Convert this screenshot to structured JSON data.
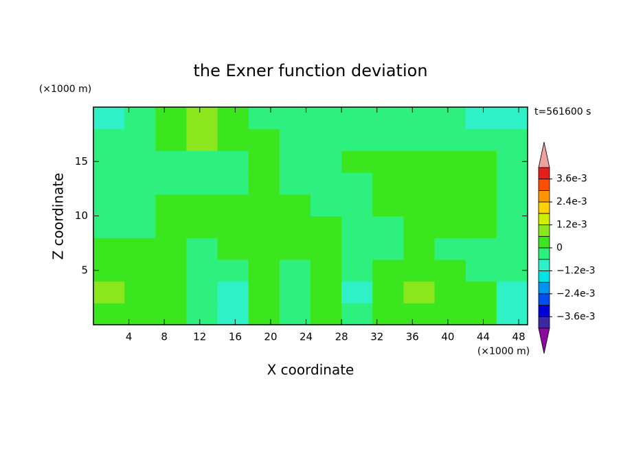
{
  "chart_data": {
    "type": "contour",
    "title": "the Exner function deviation",
    "x_label": "X coordinate",
    "y_label": "Z coordinate",
    "x_unit_label": "(×1000 m)",
    "y_unit_label": "(×1000 m)",
    "annotation": "t=561600 s",
    "xlim": [
      0,
      49
    ],
    "ylim": [
      0,
      20
    ],
    "xticks": [
      4,
      8,
      12,
      16,
      20,
      24,
      28,
      32,
      36,
      40,
      44,
      48
    ],
    "yticks": [
      5,
      10,
      15
    ],
    "levels": [
      -0.0042,
      -0.0036,
      -0.003,
      -0.0024,
      -0.0018,
      -0.0012,
      -0.0006,
      0,
      0.0006,
      0.0012,
      0.0018,
      0.0024,
      0.003,
      0.0036,
      0.0042
    ],
    "colors": [
      "#3c28a0",
      "#0000dc",
      "#0050f0",
      "#0096f0",
      "#00e6e6",
      "#30f0c8",
      "#2ef07f",
      "#3ce61e",
      "#8ce61e",
      "#d2ee00",
      "#ffd200",
      "#ff9600",
      "#ff5000",
      "#e61e1e"
    ],
    "extend_colors": [
      "#8c0aa0",
      "#f0a0a0"
    ],
    "colorbar_ticks": [
      {
        "value": 0.0036,
        "label": "3.6e-3"
      },
      {
        "value": 0.0024,
        "label": "2.4e-3"
      },
      {
        "value": 0.0012,
        "label": "1.2e-3"
      },
      0,
      {
        "value": -0.0012,
        "label": "−1.2e-3"
      },
      {
        "value": -0.0024,
        "label": "−2.4e-3"
      },
      {
        "value": -0.0036,
        "label": "−3.6e-3"
      }
    ],
    "z": [
      [
        0.0003,
        0.0003,
        0.0003,
        -0.0003,
        -0.0009,
        0.0003,
        -0.0003,
        0.0003,
        -0.0003,
        0.0003,
        0.0003,
        0.0003,
        0.0003,
        -0.0009
      ],
      [
        0.0009,
        0.0003,
        0.0003,
        -0.0003,
        -0.0009,
        0.0003,
        -0.0003,
        0.0003,
        -0.0009,
        0.0003,
        0.0009,
        0.0003,
        0.0003,
        -0.0009
      ],
      [
        0.0003,
        0.0003,
        0.0003,
        -0.0003,
        -0.0003,
        0.0003,
        -0.0003,
        0.0003,
        -0.0003,
        0.0003,
        0.0003,
        0.0003,
        -0.0003,
        -0.0003
      ],
      [
        0.0003,
        0.0003,
        0.0003,
        -0.0003,
        0.0003,
        0.0003,
        0.0003,
        0.0003,
        -0.0003,
        -0.0003,
        0.0003,
        -0.0003,
        -0.0003,
        -0.0003
      ],
      [
        -0.0003,
        -0.0003,
        0.0003,
        0.0003,
        0.0003,
        0.0003,
        0.0003,
        0.0003,
        -0.0003,
        -0.0003,
        0.0003,
        0.0003,
        0.0003,
        -0.0003
      ],
      [
        -0.0003,
        -0.0003,
        0.0003,
        0.0003,
        0.0003,
        0.0003,
        0.0003,
        -0.0003,
        -0.0003,
        0.0003,
        0.0003,
        0.0003,
        0.0003,
        -0.0003
      ],
      [
        -0.0003,
        -0.0003,
        -0.0003,
        -0.0003,
        -0.0003,
        0.0003,
        -0.0003,
        -0.0003,
        -0.0003,
        0.0003,
        0.0003,
        0.0003,
        0.0003,
        -0.0003
      ],
      [
        -0.0003,
        -0.0003,
        -0.0003,
        -0.0003,
        -0.0003,
        0.0003,
        -0.0003,
        -0.0003,
        0.0003,
        0.0003,
        0.0003,
        0.0003,
        0.0003,
        -0.0003
      ],
      [
        -0.0003,
        -0.0003,
        0.0003,
        0.0009,
        0.0003,
        0.0003,
        -0.0003,
        -0.0003,
        -0.0003,
        -0.0003,
        -0.0003,
        -0.0003,
        -0.0003,
        -0.0003
      ],
      [
        -0.0009,
        -0.0003,
        0.0003,
        0.0009,
        0.0003,
        -0.0003,
        -0.0003,
        -0.0003,
        -0.0003,
        -0.0003,
        -0.0003,
        -0.0003,
        -0.0009,
        -0.0009
      ]
    ]
  }
}
